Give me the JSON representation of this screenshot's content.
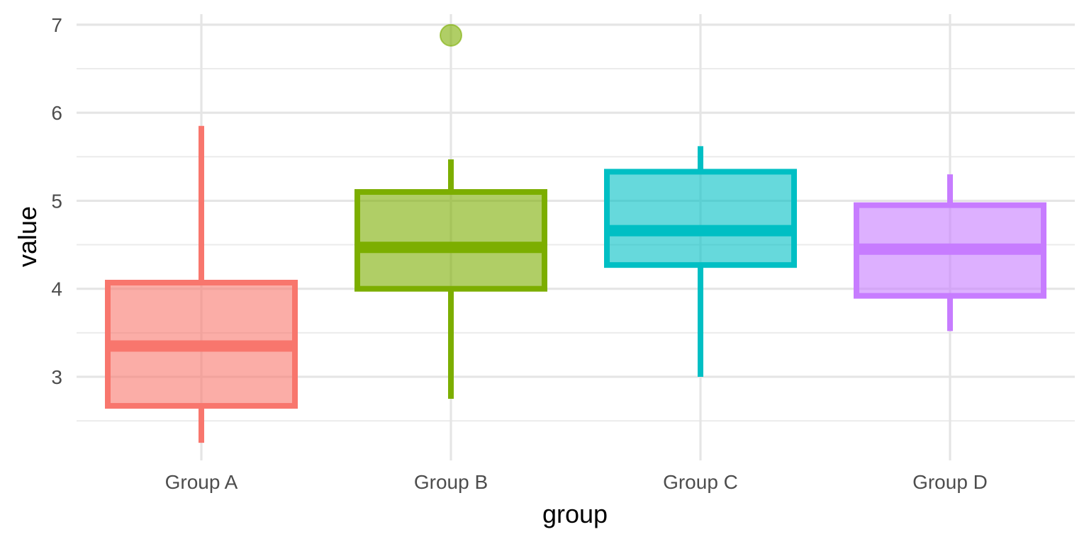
{
  "chart_data": {
    "type": "boxplot",
    "xlabel": "group",
    "ylabel": "value",
    "ylim": [
      2.05,
      7.12
    ],
    "y_ticks": [
      3,
      4,
      5,
      6,
      7
    ],
    "y_minor_ticks": [
      2.5,
      3.5,
      4.5,
      5.5,
      6.5
    ],
    "grid": true,
    "legend": "none",
    "categories": [
      "Group A",
      "Group B",
      "Group C",
      "Group D"
    ],
    "colors": [
      "#F8766D",
      "#7CAE00",
      "#00BFC4",
      "#C77CFF"
    ],
    "boxes": [
      {
        "group": "Group A",
        "whisker_low": 2.25,
        "q1": 2.67,
        "median": 3.35,
        "q3": 4.07,
        "whisker_high": 5.85,
        "outliers": []
      },
      {
        "group": "Group B",
        "whisker_low": 2.75,
        "q1": 4.0,
        "median": 4.47,
        "q3": 5.1,
        "whisker_high": 5.47,
        "outliers": [
          6.88
        ]
      },
      {
        "group": "Group C",
        "whisker_low": 3.0,
        "q1": 4.27,
        "median": 4.66,
        "q3": 5.33,
        "whisker_high": 5.62,
        "outliers": []
      },
      {
        "group": "Group D",
        "whisker_low": 3.52,
        "q1": 3.92,
        "median": 4.45,
        "q3": 4.95,
        "whisker_high": 5.3,
        "outliers": []
      }
    ]
  }
}
